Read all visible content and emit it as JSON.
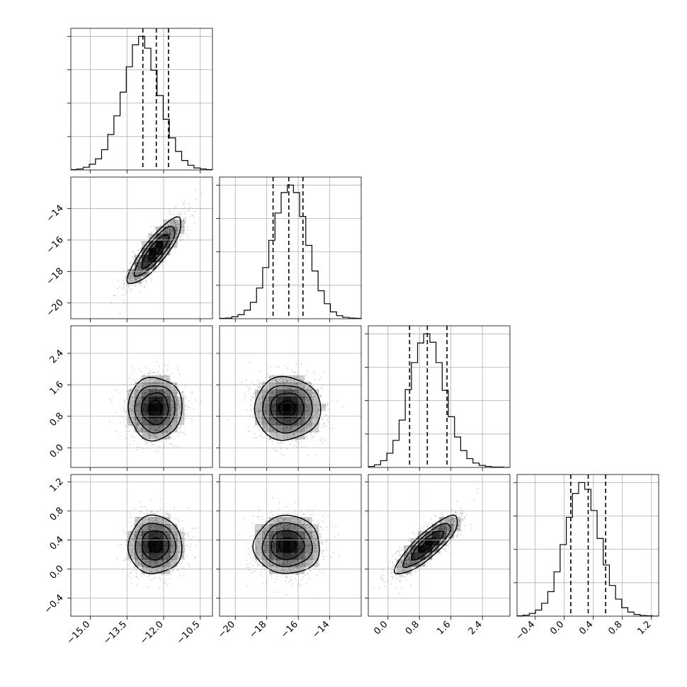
{
  "chart_data": {
    "type": "corner",
    "grid": true,
    "colors": {
      "frame": "#000000",
      "grid": "#b0b0b0",
      "density": "#000000",
      "points": "#555555"
    },
    "parameters": [
      {
        "mean": -12.35,
        "sd": 0.55,
        "range": [
          -15.8,
          -10.0
        ],
        "ticks": [
          -15.0,
          -13.5,
          -12.0,
          -10.5
        ],
        "tick_labels": [
          "−15.0",
          "−13.5",
          "−12.0",
          "−10.5"
        ],
        "quantiles": [
          -12.85,
          -12.3,
          -11.8
        ],
        "hist_bins": 23,
        "hist_counts": [
          1,
          3,
          8,
          17,
          33,
          60,
          105,
          160,
          230,
          305,
          370,
          395,
          360,
          295,
          220,
          150,
          95,
          55,
          28,
          14,
          6,
          3,
          1
        ]
      },
      {
        "mean": -16.7,
        "sd": 1.05,
        "range": [
          -21.0,
          -12.0
        ],
        "ticks": [
          -20,
          -18,
          -16,
          -14
        ],
        "tick_labels": [
          "−20",
          "−18",
          "−16",
          "−14"
        ],
        "quantiles": [
          -17.6,
          -16.6,
          -15.7
        ],
        "hist_bins": 23,
        "hist_counts": [
          1,
          2,
          6,
          12,
          25,
          48,
          90,
          150,
          230,
          310,
          370,
          392,
          370,
          300,
          215,
          140,
          82,
          44,
          20,
          9,
          4,
          2,
          1
        ]
      },
      {
        "mean": 1.0,
        "sd": 0.4,
        "range": [
          -0.5,
          3.1
        ],
        "ticks": [
          0.0,
          0.8,
          1.6,
          2.4
        ],
        "tick_labels": [
          "0.0",
          "0.8",
          "1.6",
          "2.4"
        ],
        "quantiles": [
          0.55,
          1.0,
          1.5
        ],
        "hist_bins": 23,
        "hist_counts": [
          3,
          8,
          20,
          42,
          80,
          140,
          230,
          310,
          368,
          395,
          370,
          310,
          228,
          150,
          90,
          50,
          26,
          13,
          6,
          3,
          1,
          1,
          0
        ]
      },
      {
        "mean": 0.33,
        "sd": 0.2,
        "range": [
          -0.65,
          1.3
        ],
        "ticks": [
          -0.4,
          0.0,
          0.4,
          0.8,
          1.2
        ],
        "tick_labels": [
          "−0.4",
          "0.0",
          "0.4",
          "0.8",
          "1.2"
        ],
        "quantiles": [
          0.09,
          0.33,
          0.57
        ],
        "hist_bins": 23,
        "hist_counts": [
          1,
          3,
          8,
          18,
          38,
          72,
          130,
          210,
          290,
          360,
          392,
          372,
          310,
          228,
          150,
          90,
          50,
          25,
          12,
          5,
          2,
          1,
          0
        ]
      }
    ],
    "correlations": {
      "1,0": 0.85,
      "2,0": 0.0,
      "2,1": 0.0,
      "3,0": 0.0,
      "3,1": 0.0,
      "3,2": 0.85
    },
    "contour_levels_sigma": [
      0.5,
      1.0,
      1.5,
      2.0
    ]
  }
}
